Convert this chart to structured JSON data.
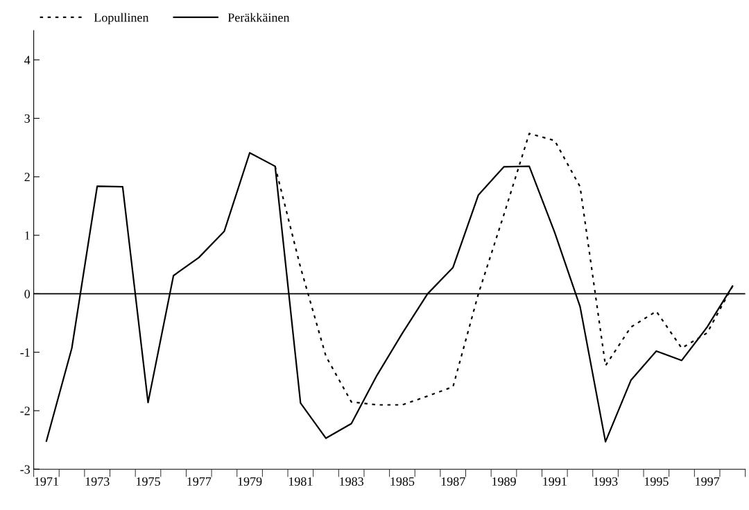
{
  "chart_data": {
    "type": "line",
    "categories": [
      "1971",
      null,
      "1973",
      null,
      "1975",
      null,
      "1977",
      null,
      "1979",
      null,
      "1981",
      null,
      "1983",
      null,
      "1985",
      null,
      "1987",
      null,
      "1989",
      null,
      "1991",
      null,
      "1993",
      null,
      "1995",
      null,
      "1997",
      null
    ],
    "series": [
      {
        "name": "Lopullinen",
        "color": "#000000",
        "line_style": "dotted",
        "values": [
          null,
          null,
          null,
          null,
          null,
          null,
          null,
          null,
          null,
          2.18,
          0.45,
          -1.07,
          -1.85,
          -1.9,
          -1.9,
          -1.75,
          -1.59,
          0.0,
          1.35,
          2.74,
          2.62,
          1.83,
          -1.23,
          -0.57,
          -0.3,
          -0.93,
          -0.67,
          0.13
        ]
      },
      {
        "name": "Peräkkäinen",
        "color": "#000000",
        "line_style": "solid",
        "values": [
          -2.52,
          -0.93,
          1.84,
          1.83,
          -1.86,
          0.31,
          0.62,
          1.07,
          2.41,
          2.18,
          -1.87,
          -2.47,
          -2.22,
          -1.4,
          -0.68,
          0.0,
          0.45,
          1.69,
          2.17,
          2.18,
          1.05,
          -0.22,
          -2.53,
          -1.48,
          -0.98,
          -1.14,
          -0.57,
          0.13
        ]
      }
    ],
    "ylim": [
      -3,
      4.5
    ],
    "yticks": [
      {
        "value": -3,
        "label": "-3"
      },
      {
        "value": -2,
        "label": "-2"
      },
      {
        "value": -1,
        "label": "-1"
      },
      0,
      1,
      2,
      3,
      4
    ],
    "ref_lines": [
      {
        "axis": "y",
        "value": 0,
        "color": "#000000"
      }
    ],
    "legend": "top left",
    "grid": false,
    "marker": "none"
  }
}
